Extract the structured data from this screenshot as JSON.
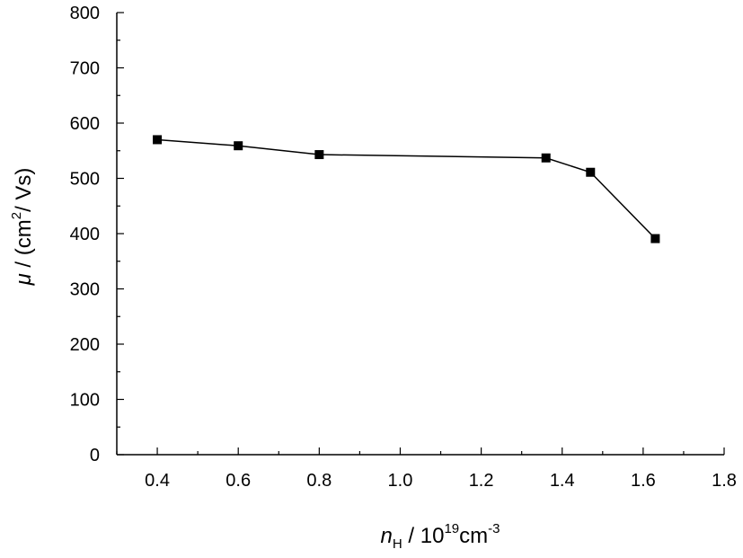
{
  "chart_data": {
    "type": "line",
    "title": "",
    "x": [
      0.4,
      0.6,
      0.8,
      1.36,
      1.47,
      1.63
    ],
    "series": [
      {
        "values": [
          570,
          559,
          543,
          537,
          511,
          391
        ],
        "marker": "square",
        "color": "#000000"
      }
    ],
    "xlim": [
      0.3,
      1.8
    ],
    "ylim": [
      0,
      800
    ],
    "x_ticks": [
      "0.4",
      "0.6",
      "0.8",
      "1.0",
      "1.2",
      "1.4",
      "1.6",
      "1.8"
    ],
    "y_ticks": [
      "0",
      "100",
      "200",
      "300",
      "400",
      "500",
      "600",
      "700",
      "800"
    ],
    "grid": false,
    "legend": "none",
    "xlabel": {
      "symbol": "n",
      "subscript": "H",
      "text": " / 10",
      "superscript": "19",
      "unit": "cm",
      "unit_superscript": "-3"
    },
    "ylabel": {
      "symbol": "μ",
      "text": " / (cm",
      "superscript": "2",
      "unit": "/ Vs)"
    }
  }
}
